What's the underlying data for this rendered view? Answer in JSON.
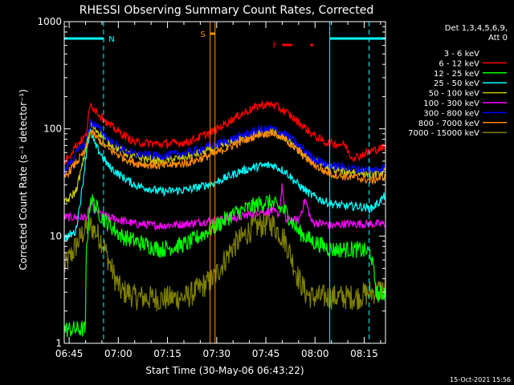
{
  "chart_data": {
    "type": "line",
    "title": "RHESSI Observing Summary Count Rates, Corrected",
    "xlabel": "Start Time (30-May-06 06:43:22)",
    "ylabel": "Corrected Count Rate (s⁻¹ detector⁻¹)",
    "yscale": "log",
    "ylim": [
      1,
      1000
    ],
    "xlim_minutes": [
      -1.5,
      96.5
    ],
    "x_ticks": [
      {
        "label": "06:45",
        "minutes": 0
      },
      {
        "label": "07:00",
        "minutes": 15
      },
      {
        "label": "07:15",
        "minutes": 30
      },
      {
        "label": "07:30",
        "minutes": 45
      },
      {
        "label": "07:45",
        "minutes": 60
      },
      {
        "label": "08:00",
        "minutes": 75
      },
      {
        "label": "08:15",
        "minutes": 90
      }
    ],
    "y_ticks": [
      {
        "label": "1",
        "value": 1
      },
      {
        "label": "10",
        "value": 10
      },
      {
        "label": "100",
        "value": 100
      },
      {
        "label": "1000",
        "value": 1000
      }
    ],
    "legend_header": [
      "Det 1,3,4,5,6,9,",
      "Att 0"
    ],
    "legend_position": "right",
    "footer_date": "15-Oct-2021 15:56",
    "flags": [
      {
        "label": "N",
        "color": "#00ffff",
        "segments_minutes": [
          [
            -1.5,
            10.5
          ],
          [
            79.5,
            96.5
          ]
        ]
      },
      {
        "label": "S",
        "color": "#ff8c00",
        "segments_minutes": [
          [
            43.0,
            44.5
          ]
        ]
      },
      {
        "label": "F",
        "color": "#ff0000",
        "segments_minutes": [
          [
            65.0,
            68.0
          ],
          [
            73.5,
            74.5
          ]
        ]
      }
    ],
    "vertical_markers": [
      {
        "minutes": 10.5,
        "color": "#00ffff",
        "style": "dashed"
      },
      {
        "minutes": 43.0,
        "color": "#ff8c00",
        "style": "solid"
      },
      {
        "minutes": 44.5,
        "color": "#ff8c00",
        "style": "solid"
      },
      {
        "minutes": 79.5,
        "color": "#00ffff",
        "style": "solid"
      },
      {
        "minutes": 91.5,
        "color": "#00ffff",
        "style": "dashed"
      }
    ],
    "series": [
      {
        "name": "3 - 6 keV",
        "color": "#000000",
        "x": [],
        "values": []
      },
      {
        "name": "6 - 12 keV",
        "color": "#ff0000",
        "x": [
          -1.5,
          2,
          5,
          6.5,
          8,
          12,
          16,
          20,
          28,
          36,
          44,
          52,
          58,
          62,
          66,
          70,
          74,
          78,
          80,
          82,
          84,
          86,
          88,
          92,
          96.5
        ],
        "values": [
          48,
          70,
          85,
          170,
          150,
          110,
          90,
          75,
          72,
          75,
          95,
          135,
          165,
          170,
          145,
          115,
          90,
          75,
          73,
          72,
          72,
          55,
          55,
          62,
          68
        ]
      },
      {
        "name": "12 - 25 keV",
        "color": "#00ff00",
        "x": [
          -1.5,
          5,
          5.2,
          6.5,
          8,
          10,
          12,
          16,
          20,
          28,
          36,
          44,
          50,
          56,
          60,
          62,
          66,
          70,
          74,
          78,
          80,
          84,
          88,
          92,
          94,
          96.5
        ],
        "values": [
          1.35,
          1.35,
          7,
          23,
          19,
          15,
          13,
          10,
          9,
          7.5,
          8.5,
          12,
          16,
          19,
          21,
          20,
          17,
          11,
          9,
          8,
          7.5,
          7.5,
          7.5,
          7,
          2.8,
          3
        ]
      },
      {
        "name": "25 - 50 keV",
        "color": "#00ffff",
        "x": [
          -1.5,
          2,
          4,
          5.5,
          6.5,
          8,
          12,
          16,
          20,
          28,
          36,
          44,
          52,
          58,
          62,
          66,
          70,
          74,
          78,
          80,
          84,
          88,
          92,
          94,
          96.5
        ],
        "values": [
          9.5,
          11,
          28,
          70,
          95,
          70,
          45,
          36,
          30,
          26,
          27,
          31,
          40,
          45,
          46,
          40,
          30,
          24,
          21,
          20,
          19,
          19,
          18,
          20,
          24
        ]
      },
      {
        "name": "50 - 100 keV",
        "color": "#c8c800",
        "x": [
          -1.5,
          2,
          4,
          5.5,
          6.5,
          8,
          12,
          16,
          20,
          28,
          36,
          44,
          52,
          58,
          62,
          66,
          70,
          74,
          78,
          80,
          84,
          88,
          92,
          94,
          96.5
        ],
        "values": [
          20,
          26,
          45,
          80,
          110,
          100,
          75,
          62,
          55,
          50,
          55,
          65,
          80,
          92,
          95,
          80,
          62,
          52,
          45,
          43,
          40,
          40,
          38,
          38,
          40
        ]
      },
      {
        "name": "100 - 300 keV",
        "color": "#ff00ff",
        "x": [
          -1.5,
          5.5,
          6.5,
          8,
          10,
          12,
          16,
          20,
          28,
          36,
          44,
          52,
          58,
          62,
          64,
          65,
          66,
          68,
          70,
          72,
          74,
          78,
          80,
          84,
          88,
          92,
          96.5
        ],
        "values": [
          15,
          15,
          20,
          17,
          16,
          15,
          14,
          13,
          12.5,
          13,
          14,
          15,
          17,
          17,
          16,
          30,
          14,
          14,
          14,
          22,
          13.5,
          13,
          12.5,
          13,
          13,
          13,
          13
        ]
      },
      {
        "name": "300 - 800 keV",
        "color": "#0000ff",
        "x": [
          -1.5,
          2,
          5,
          6.5,
          8,
          12,
          16,
          20,
          28,
          36,
          44,
          52,
          58,
          62,
          66,
          70,
          74,
          78,
          80,
          84,
          88,
          92,
          96.5
        ],
        "values": [
          40,
          58,
          75,
          115,
          110,
          80,
          65,
          58,
          56,
          60,
          70,
          85,
          98,
          100,
          90,
          70,
          55,
          47,
          45,
          44,
          42,
          41,
          44
        ]
      },
      {
        "name": "800 - 7000 keV",
        "color": "#ff8c00",
        "x": [
          -1.5,
          2,
          5,
          6.5,
          8,
          12,
          16,
          20,
          28,
          36,
          44,
          52,
          58,
          62,
          66,
          70,
          74,
          78,
          80,
          84,
          88,
          92,
          96.5
        ],
        "values": [
          35,
          48,
          62,
          95,
          85,
          65,
          55,
          48,
          45,
          48,
          58,
          75,
          90,
          92,
          80,
          62,
          48,
          40,
          38,
          36,
          35,
          33,
          36
        ]
      },
      {
        "name": "7000 - 15000 keV",
        "color": "#808000",
        "x": [
          -1.5,
          2,
          5,
          6.5,
          8,
          10,
          12,
          14,
          16,
          18,
          20,
          28,
          36,
          44,
          50,
          56,
          60,
          62,
          66,
          70,
          72,
          74,
          76,
          80,
          84,
          88,
          92,
          96.5
        ],
        "values": [
          5,
          8,
          12,
          12.5,
          11,
          9,
          6,
          4,
          3,
          3,
          2.7,
          2.6,
          2.7,
          4,
          8,
          12,
          13,
          13,
          9,
          4,
          3,
          2.7,
          2.7,
          2.7,
          2.7,
          2.7,
          3,
          3.2
        ]
      }
    ]
  }
}
